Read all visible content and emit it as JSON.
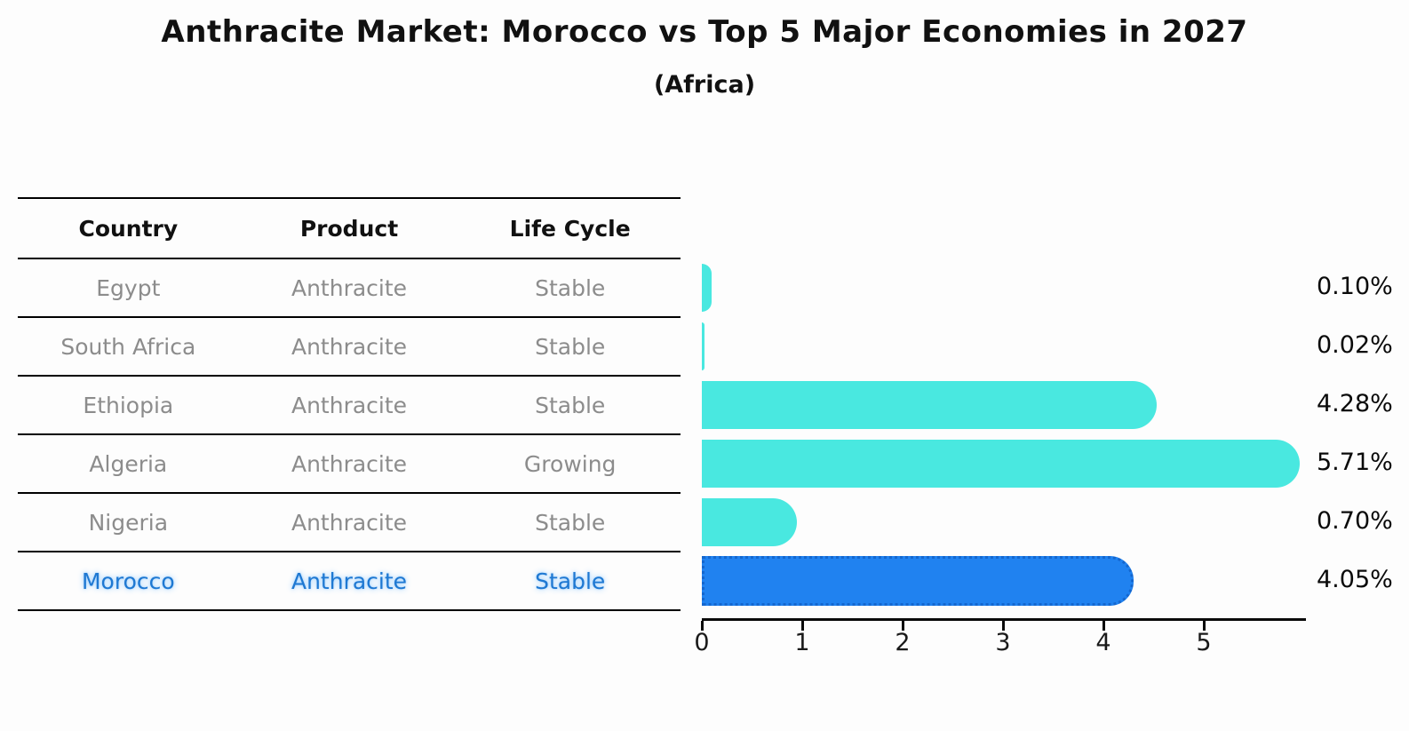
{
  "title": "Anthracite Market: Morocco vs Top 5 Major Economies in 2027",
  "subtitle": "(Africa)",
  "table": {
    "headers": [
      "Country",
      "Product",
      "Life Cycle"
    ],
    "rows": [
      {
        "country": "Egypt",
        "product": "Anthracite",
        "life_cycle": "Stable",
        "highlight": false
      },
      {
        "country": "South Africa",
        "product": "Anthracite",
        "life_cycle": "Stable",
        "highlight": false
      },
      {
        "country": "Ethiopia",
        "product": "Anthracite",
        "life_cycle": "Stable",
        "highlight": false
      },
      {
        "country": "Algeria",
        "product": "Anthracite",
        "life_cycle": "Growing",
        "highlight": false
      },
      {
        "country": "Nigeria",
        "product": "Anthracite",
        "life_cycle": "Stable",
        "highlight": false
      },
      {
        "country": "Morocco",
        "product": "Anthracite",
        "life_cycle": "Stable",
        "highlight": true
      }
    ]
  },
  "chart_data": {
    "type": "bar",
    "orientation": "horizontal",
    "title": "Anthracite Market: Morocco vs Top 5 Major Economies in 2027 (Africa)",
    "categories": [
      "Egypt",
      "South Africa",
      "Ethiopia",
      "Algeria",
      "Nigeria",
      "Morocco"
    ],
    "values": [
      0.1,
      0.02,
      4.28,
      5.71,
      0.7,
      4.05
    ],
    "labels": [
      "0.10%",
      "0.02%",
      "4.28%",
      "5.71%",
      "0.70%",
      "4.05%"
    ],
    "x_ticks": [
      0,
      1,
      2,
      3,
      4,
      5
    ],
    "xlim": [
      0,
      6
    ],
    "xlabel": "",
    "ylabel": "",
    "grid": false,
    "legend": false,
    "highlight_index": 5,
    "bar_color": "#49E8E0",
    "highlight_bar_color": "#2082F0",
    "highlight_edge_color": "#1467CF",
    "highlight_text_color": "#1E78D2"
  }
}
